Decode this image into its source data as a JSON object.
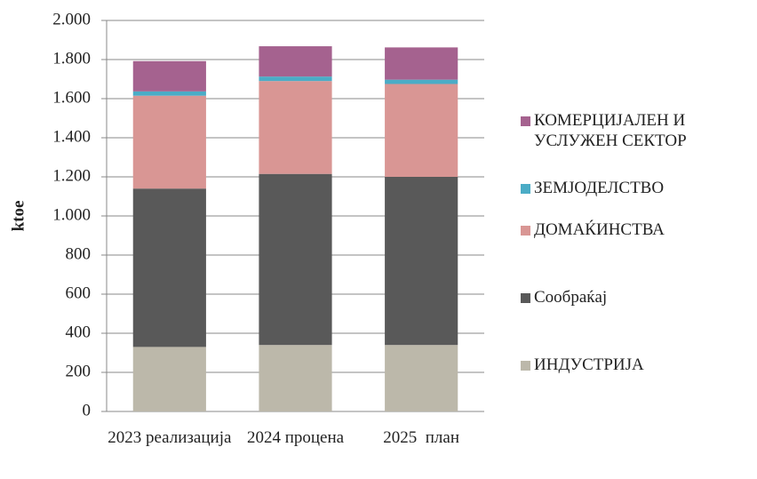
{
  "chart_data": {
    "type": "stacked_bar",
    "y_label": "ktoe",
    "categories": [
      "2023 реализација",
      "2024 процена",
      "2025  план"
    ],
    "series": [
      {
        "name": "ИНДУСТРИЈА",
        "color": "#bcb8aa",
        "values": [
          330,
          340,
          340
        ]
      },
      {
        "name": "Сообраќај",
        "color": "#595959",
        "values": [
          810,
          875,
          860
        ]
      },
      {
        "name": "ДОМАЌИНСТВА",
        "color": "#d99694",
        "values": [
          475,
          475,
          475
        ]
      },
      {
        "name": "ЗЕМЈОДЕЛСТВО",
        "color": "#4bacc6",
        "values": [
          22,
          23,
          22
        ]
      },
      {
        "name": "КОМЕРЦИЈАЛЕН И УСЛУЖЕН СЕКТОР",
        "color": "#a5628f",
        "values": [
          155,
          155,
          165
        ]
      }
    ],
    "ylim": [
      0,
      2000
    ],
    "yticks": [
      0,
      200,
      400,
      600,
      800,
      {
        "value": 1000,
        "label": "1.000"
      },
      {
        "value": 1200,
        "label": "1.200"
      },
      {
        "value": 1400,
        "label": "1.400"
      },
      {
        "value": 1600,
        "label": "1.600"
      },
      {
        "value": 1800,
        "label": "1.800"
      },
      {
        "value": 2000,
        "label": "2.000"
      }
    ],
    "grid": true,
    "legend": "right"
  }
}
